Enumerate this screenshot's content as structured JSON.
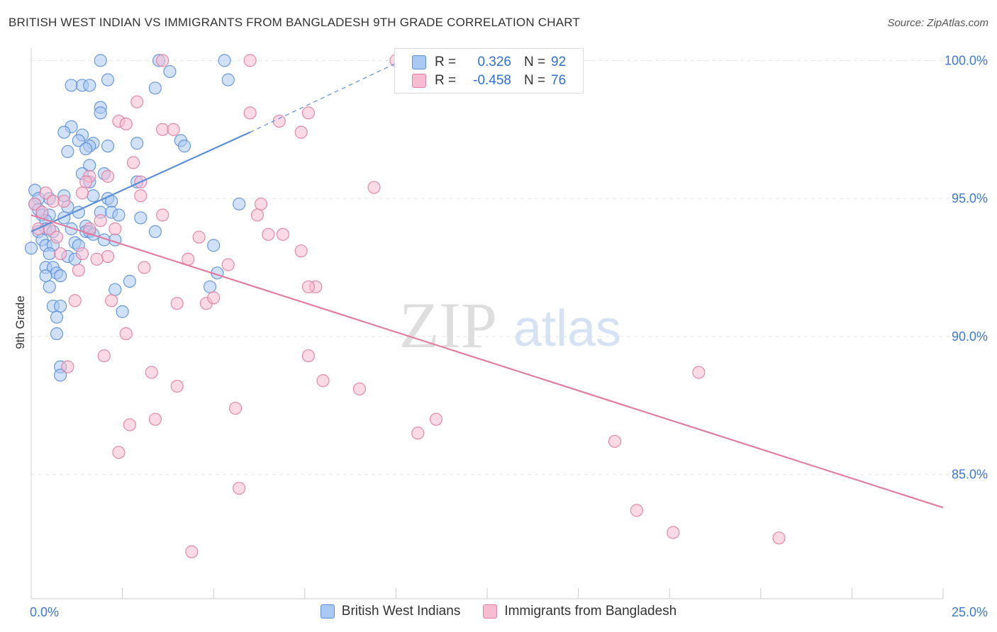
{
  "title": "BRITISH WEST INDIAN VS IMMIGRANTS FROM BANGLADESH 9TH GRADE CORRELATION CHART",
  "source": "Source: ZipAtlas.com",
  "watermark": {
    "zip": "ZIP",
    "atlas": "atlas"
  },
  "legend": {
    "rows": [
      {
        "r_label": "R =",
        "r_value": "0.326",
        "n_label": "N =",
        "n_value": "92",
        "color": "#a9c8f2",
        "border": "#5b8fd8"
      },
      {
        "r_label": "R =",
        "r_value": "-0.458",
        "n_label": "N =",
        "n_value": "76",
        "color": "#f7bcd0",
        "border": "#e07da0"
      }
    ]
  },
  "bottom_legend": [
    {
      "label": "British West Indians",
      "color": "#a9c8f2",
      "border": "#5b8fd8"
    },
    {
      "label": "Immigrants from Bangladesh",
      "color": "#f7bcd0",
      "border": "#e07da0"
    }
  ],
  "chart_data": {
    "type": "scatter",
    "ylabel": "9th Grade",
    "xlim": [
      0,
      25
    ],
    "ylim": [
      80.5,
      100.6
    ],
    "x_tick_labels": [
      {
        "value": 0,
        "label": "0.0%"
      },
      {
        "value": 25,
        "label": "25.0%"
      }
    ],
    "y_tick_labels": [
      {
        "value": 85,
        "label": "85.0%"
      },
      {
        "value": 90,
        "label": "90.0%"
      },
      {
        "value": 95,
        "label": "95.0%"
      },
      {
        "value": 100,
        "label": "100.0%"
      }
    ],
    "grid": "horizontal dashed",
    "series": [
      {
        "name": "British West Indians",
        "color": "#5b8fd8",
        "fill": "#a9c8f2",
        "trend": {
          "x0": 0.0,
          "y0": 93.8,
          "x1": 6.0,
          "y1": 97.4,
          "dash_to_x": 10.0,
          "dash_to_y": 99.9
        },
        "points": [
          [
            1.9,
            100.0
          ],
          [
            3.5,
            100.0
          ],
          [
            5.3,
            100.0
          ],
          [
            3.8,
            99.6
          ],
          [
            2.1,
            99.3
          ],
          [
            5.4,
            99.3
          ],
          [
            1.1,
            99.1
          ],
          [
            1.4,
            99.1
          ],
          [
            1.6,
            99.1
          ],
          [
            3.4,
            99.0
          ],
          [
            1.9,
            98.3
          ],
          [
            1.9,
            98.1
          ],
          [
            1.1,
            97.6
          ],
          [
            1.4,
            97.3
          ],
          [
            0.9,
            97.4
          ],
          [
            1.3,
            97.1
          ],
          [
            4.1,
            97.1
          ],
          [
            2.9,
            97.0
          ],
          [
            1.7,
            97.0
          ],
          [
            1.6,
            96.9
          ],
          [
            1.5,
            96.8
          ],
          [
            2.1,
            96.9
          ],
          [
            4.2,
            96.9
          ],
          [
            1.0,
            96.7
          ],
          [
            1.6,
            96.2
          ],
          [
            1.4,
            95.9
          ],
          [
            2.0,
            95.9
          ],
          [
            1.6,
            95.6
          ],
          [
            2.9,
            95.6
          ],
          [
            0.1,
            95.3
          ],
          [
            0.9,
            95.1
          ],
          [
            1.7,
            95.1
          ],
          [
            2.1,
            95.0
          ],
          [
            0.5,
            95.0
          ],
          [
            0.2,
            95.0
          ],
          [
            2.2,
            94.9
          ],
          [
            0.1,
            94.8
          ],
          [
            5.7,
            94.8
          ],
          [
            1.0,
            94.7
          ],
          [
            0.2,
            94.6
          ],
          [
            1.3,
            94.5
          ],
          [
            1.9,
            94.5
          ],
          [
            2.2,
            94.5
          ],
          [
            2.4,
            94.4
          ],
          [
            3.0,
            94.3
          ],
          [
            0.3,
            94.4
          ],
          [
            0.5,
            94.4
          ],
          [
            0.9,
            94.3
          ],
          [
            0.4,
            94.2
          ],
          [
            1.5,
            94.0
          ],
          [
            1.1,
            93.9
          ],
          [
            0.4,
            93.9
          ],
          [
            3.4,
            93.8
          ],
          [
            0.2,
            93.8
          ],
          [
            1.5,
            93.8
          ],
          [
            1.6,
            93.8
          ],
          [
            0.6,
            93.8
          ],
          [
            1.7,
            93.7
          ],
          [
            0.3,
            93.5
          ],
          [
            2.0,
            93.5
          ],
          [
            2.3,
            93.5
          ],
          [
            1.2,
            93.4
          ],
          [
            0.4,
            93.3
          ],
          [
            0.6,
            93.3
          ],
          [
            5.0,
            93.3
          ],
          [
            1.3,
            93.3
          ],
          [
            0.0,
            93.2
          ],
          [
            0.5,
            93.0
          ],
          [
            1.0,
            92.9
          ],
          [
            1.2,
            92.8
          ],
          [
            0.4,
            92.5
          ],
          [
            0.6,
            92.5
          ],
          [
            0.7,
            92.3
          ],
          [
            0.8,
            92.2
          ],
          [
            0.4,
            92.2
          ],
          [
            5.1,
            92.3
          ],
          [
            2.7,
            92.0
          ],
          [
            4.9,
            91.8
          ],
          [
            2.3,
            91.7
          ],
          [
            0.5,
            91.8
          ],
          [
            0.6,
            91.1
          ],
          [
            0.8,
            91.1
          ],
          [
            2.5,
            90.9
          ],
          [
            0.7,
            90.7
          ],
          [
            0.7,
            90.1
          ],
          [
            0.8,
            88.9
          ],
          [
            0.8,
            88.6
          ]
        ]
      },
      {
        "name": "Immigrants from Bangladesh",
        "color": "#e07da0",
        "fill": "#f7bcd0",
        "trend": {
          "x0": 0.0,
          "y0": 94.4,
          "x1": 25.0,
          "y1": 83.8
        },
        "points": [
          [
            3.6,
            100.0
          ],
          [
            6.0,
            100.0
          ],
          [
            10.0,
            100.0
          ],
          [
            2.9,
            98.5
          ],
          [
            6.0,
            98.1
          ],
          [
            7.6,
            98.1
          ],
          [
            2.4,
            97.8
          ],
          [
            2.6,
            97.7
          ],
          [
            6.8,
            97.8
          ],
          [
            3.6,
            97.5
          ],
          [
            3.9,
            97.5
          ],
          [
            7.4,
            97.4
          ],
          [
            2.8,
            96.3
          ],
          [
            1.6,
            95.8
          ],
          [
            2.1,
            95.8
          ],
          [
            1.5,
            95.6
          ],
          [
            3.0,
            95.6
          ],
          [
            9.4,
            95.4
          ],
          [
            0.4,
            95.2
          ],
          [
            1.4,
            95.2
          ],
          [
            3.0,
            95.1
          ],
          [
            0.6,
            94.9
          ],
          [
            0.9,
            94.9
          ],
          [
            6.3,
            94.8
          ],
          [
            0.1,
            94.8
          ],
          [
            0.3,
            94.5
          ],
          [
            3.6,
            94.4
          ],
          [
            6.2,
            94.4
          ],
          [
            1.9,
            94.2
          ],
          [
            0.2,
            93.9
          ],
          [
            0.5,
            93.9
          ],
          [
            1.6,
            93.9
          ],
          [
            2.3,
            93.9
          ],
          [
            6.5,
            93.7
          ],
          [
            6.9,
            93.7
          ],
          [
            4.6,
            93.6
          ],
          [
            0.7,
            93.6
          ],
          [
            7.4,
            93.1
          ],
          [
            0.8,
            93.0
          ],
          [
            1.4,
            93.0
          ],
          [
            2.1,
            92.9
          ],
          [
            1.8,
            92.8
          ],
          [
            4.3,
            92.8
          ],
          [
            5.4,
            92.6
          ],
          [
            3.1,
            92.5
          ],
          [
            1.3,
            92.4
          ],
          [
            7.8,
            91.8
          ],
          [
            7.6,
            91.8
          ],
          [
            1.2,
            91.3
          ],
          [
            2.2,
            91.3
          ],
          [
            4.0,
            91.2
          ],
          [
            4.8,
            91.2
          ],
          [
            5.0,
            91.4
          ],
          [
            2.6,
            90.1
          ],
          [
            2.0,
            89.3
          ],
          [
            7.6,
            89.3
          ],
          [
            1.0,
            88.9
          ],
          [
            3.3,
            88.7
          ],
          [
            8.0,
            88.4
          ],
          [
            4.0,
            88.2
          ],
          [
            9.0,
            88.1
          ],
          [
            18.3,
            88.7
          ],
          [
            5.6,
            87.4
          ],
          [
            11.1,
            87.0
          ],
          [
            3.4,
            87.0
          ],
          [
            2.7,
            86.8
          ],
          [
            10.6,
            86.5
          ],
          [
            16.0,
            86.2
          ],
          [
            2.4,
            85.8
          ],
          [
            5.7,
            84.5
          ],
          [
            16.6,
            83.7
          ],
          [
            17.6,
            82.9
          ],
          [
            20.5,
            82.7
          ],
          [
            4.4,
            82.2
          ]
        ]
      }
    ]
  }
}
